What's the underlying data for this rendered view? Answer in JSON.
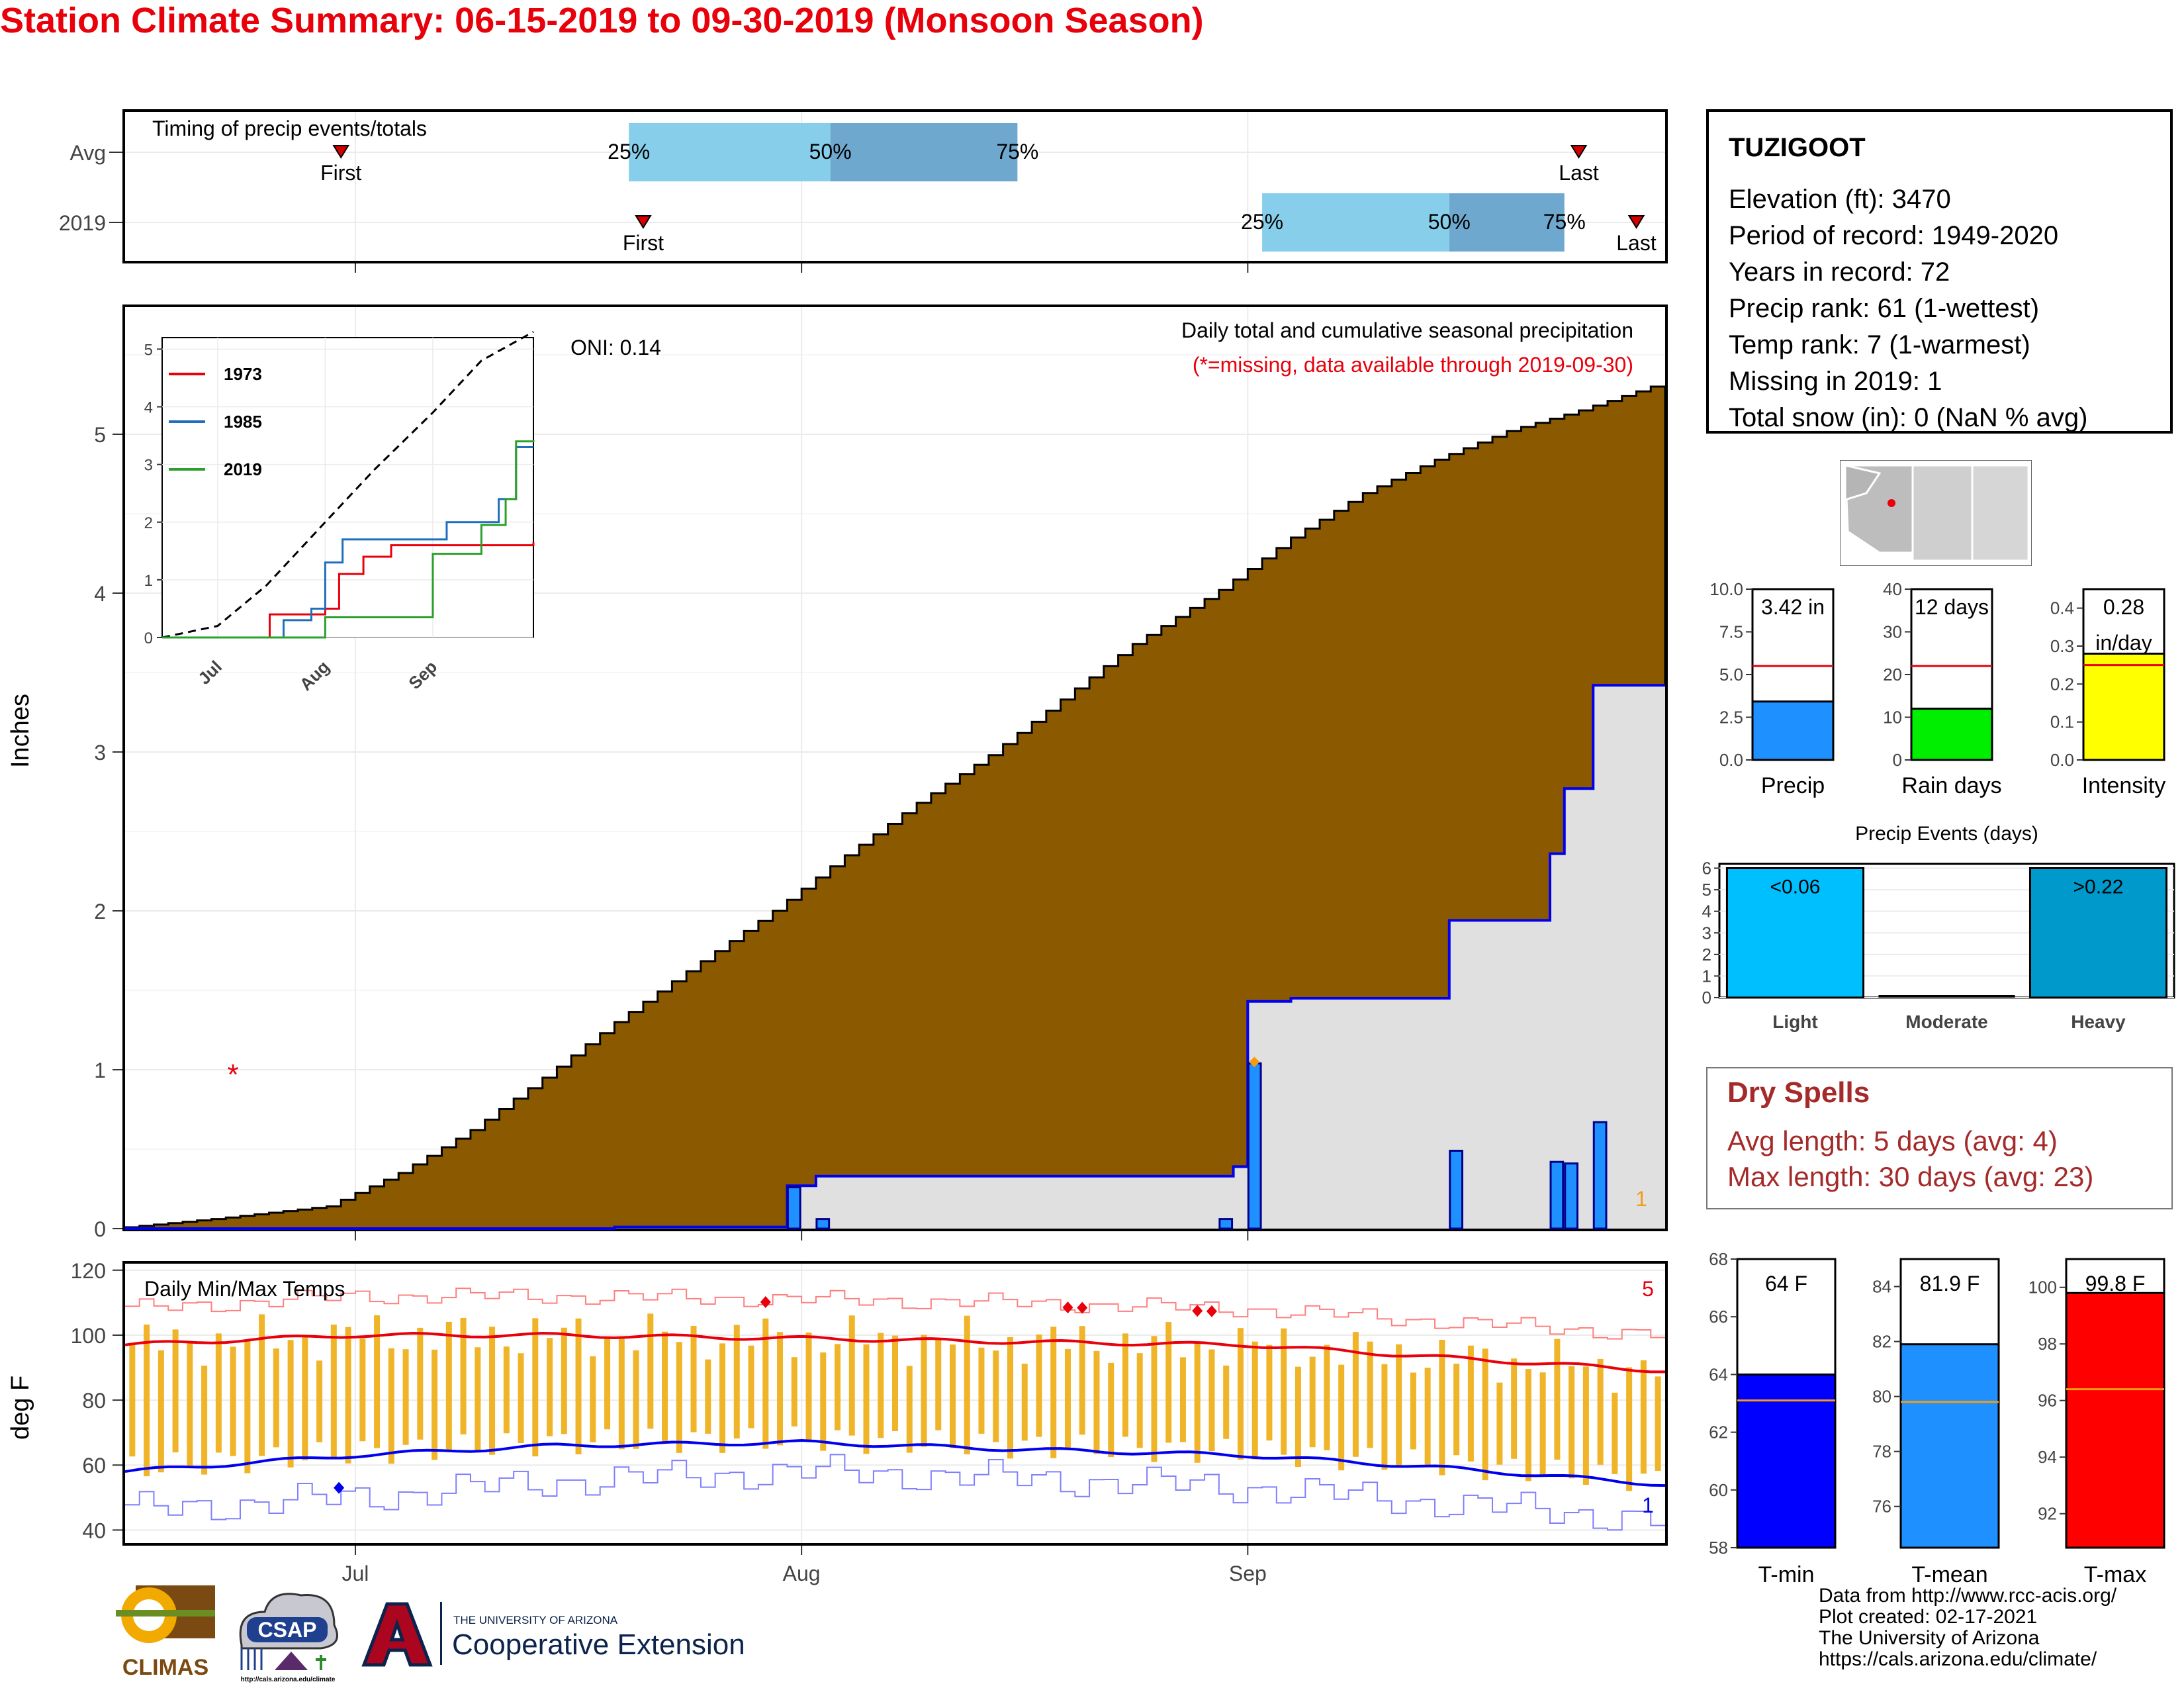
{
  "title": "Station Climate Summary: 06-15-2019 to 09-30-2019 (Monsoon Season)",
  "timing": {
    "label": "Timing of precip events/totals",
    "rows": [
      {
        "label": "Avg",
        "first_marker": "First",
        "last_marker": "Last",
        "first_date": "2019-06-30",
        "last_date": "2019-09-24",
        "q25_date": "2019-07-20",
        "q50_date": "2019-08-03",
        "q75_date": "2019-08-16",
        "q25": "25%",
        "q50": "50%",
        "q75": "75%"
      },
      {
        "label": "2019",
        "first_marker": "First",
        "last_marker": "Last",
        "first_date": "2019-07-21",
        "last_date": "2019-09-28",
        "q25_date": "2019-09-02",
        "q50_date": "2019-09-15",
        "q75_date": "2019-09-23",
        "q25": "25%",
        "q50": "50%",
        "q75": "75%"
      }
    ],
    "colors": {
      "light": "#87ceeb",
      "dark": "#6fa8cf",
      "marker": "#d40000"
    }
  },
  "precip_panel": {
    "ylabel": "Inches",
    "subtitle": "Daily total and cumulative seasonal precipitation",
    "missing_note": "(*=missing, data available through 2019-09-30)",
    "oni": "ONI: 0.14",
    "missing_count": "1",
    "yticks": [
      "0",
      "1",
      "2",
      "3",
      "4",
      "5"
    ],
    "xticks": [
      "Jul",
      "Aug",
      "Sep"
    ]
  },
  "inset": {
    "legend": [
      "1973",
      "1985",
      "2019"
    ],
    "colors": [
      "#e8000b",
      "#1f6fbf",
      "#2ca02c"
    ],
    "yticks": [
      "0",
      "1",
      "2",
      "3",
      "4",
      "5"
    ],
    "xticks": [
      "Jul",
      "Aug",
      "Sep"
    ]
  },
  "temp_panel": {
    "ylabel": "deg F",
    "label": "Daily Min/Max Temps",
    "record_high_count": "5",
    "record_low_count": "1",
    "yticks": [
      "40",
      "60",
      "80",
      "100",
      "120"
    ],
    "xticks": [
      "Jul",
      "Aug",
      "Sep"
    ]
  },
  "station": {
    "name": "TUZIGOOT",
    "lines": [
      "Elevation (ft): 3470",
      "Period of record: 1949-2020",
      "Years in record: 72",
      "Precip rank: 61 (1-wettest)",
      "Temp rank: 7 (1-warmest)",
      "Missing in 2019: 1",
      "Total snow (in): 0 (NaN % avg)"
    ]
  },
  "mini_bars": [
    {
      "label": "Precip",
      "value_label": "3.42 in",
      "value": 3.42,
      "avg": 5.5,
      "ymax": 10,
      "yticks": [
        "0.0",
        "2.5",
        "5.0",
        "7.5",
        "10.0"
      ],
      "color": "#1e90ff"
    },
    {
      "label": "Rain days",
      "value_label": "12 days",
      "value": 12,
      "avg": 22,
      "ymax": 40,
      "yticks": [
        "0",
        "10",
        "20",
        "30",
        "40"
      ],
      "color": "#00ee00"
    },
    {
      "label": "Intensity",
      "value_label": "0.28",
      "value_label2": "in/day",
      "value": 0.28,
      "avg": 0.25,
      "ymax": 0.45,
      "yticks": [
        "0.0",
        "0.1",
        "0.2",
        "0.3",
        "0.4"
      ],
      "color": "#ffff00"
    }
  ],
  "events": {
    "title": "Precip Events (days)",
    "categories": [
      "Light",
      "Moderate",
      "Heavy"
    ],
    "values": [
      6,
      0,
      6
    ],
    "labels": [
      "<0.06",
      "",
      ">0.22"
    ],
    "yticks": [
      "0",
      "1",
      "2",
      "3",
      "4",
      "5",
      "6"
    ],
    "colors": [
      "#00bfff",
      "#000000",
      "#0099cc"
    ]
  },
  "dry_spells": {
    "title": "Dry Spells",
    "avg_line": "Avg length: 5 days (avg: 4)",
    "max_line": "Max length: 30 days (avg: 23)"
  },
  "temp_bars": [
    {
      "label": "T-min",
      "value_label": "64 F",
      "value": 64.0,
      "avg": 63.1,
      "ymin": 58,
      "ymax": 68,
      "yticks": [
        "58",
        "60",
        "62",
        "64",
        "66",
        "68"
      ],
      "color": "#0000ff"
    },
    {
      "label": "T-mean",
      "value_label": "81.9 F",
      "value": 81.9,
      "avg": 79.8,
      "ymin": 74.5,
      "ymax": 85,
      "yticks": [
        "76",
        "78",
        "80",
        "82",
        "84"
      ],
      "color": "#1e90ff"
    },
    {
      "label": "T-max",
      "value_label": "99.8 F",
      "value": 99.8,
      "avg": 96.4,
      "ymin": 90.8,
      "ymax": 101,
      "yticks": [
        "92",
        "94",
        "96",
        "98",
        "100"
      ],
      "color": "#ff0000"
    }
  ],
  "logos": {
    "climas": "CLIMAS",
    "csap": "CSAP",
    "csap_url": "http://cals.arizona.edu/climate",
    "ua_line1": "THE UNIVERSITY OF ARIZONA",
    "ua_line2": "Cooperative Extension"
  },
  "credits": [
    "Data from http://www.rcc-acis.org/",
    "Plot created: 02-17-2021",
    "The University of Arizona",
    "https://cals.arizona.edu/climate/"
  ],
  "chart_data": [
    {
      "type": "area",
      "title": "Daily total and cumulative seasonal precipitation",
      "ylabel": "Inches",
      "ylim": [
        0,
        5.8
      ],
      "x_start": "2019-06-15",
      "x_end": "2019-09-30",
      "series": [
        {
          "name": "Average cumulative",
          "x": [
            "2019-06-15",
            "2019-06-22",
            "2019-06-30",
            "2019-07-05",
            "2019-07-10",
            "2019-07-15",
            "2019-07-20",
            "2019-07-25",
            "2019-07-31",
            "2019-08-05",
            "2019-08-10",
            "2019-08-15",
            "2019-08-20",
            "2019-08-25",
            "2019-08-31",
            "2019-09-05",
            "2019-09-10",
            "2019-09-15",
            "2019-09-20",
            "2019-09-25",
            "2019-09-30"
          ],
          "values": [
            0.0,
            0.06,
            0.14,
            0.35,
            0.62,
            0.95,
            1.3,
            1.62,
            2.0,
            2.35,
            2.68,
            2.98,
            3.33,
            3.68,
            4.02,
            4.35,
            4.63,
            4.84,
            5.02,
            5.15,
            5.3
          ]
        },
        {
          "name": "2019 cumulative",
          "x": [
            "2019-06-15",
            "2019-07-19",
            "2019-07-30",
            "2019-07-31",
            "2019-08-02",
            "2019-08-29",
            "2019-08-31",
            "2019-09-01",
            "2019-09-04",
            "2019-09-15",
            "2019-09-22",
            "2019-09-23",
            "2019-09-25",
            "2019-09-30"
          ],
          "values": [
            0.0,
            0.01,
            0.01,
            0.27,
            0.33,
            0.33,
            0.39,
            1.43,
            1.45,
            1.94,
            2.36,
            2.77,
            3.42,
            3.42
          ]
        },
        {
          "name": "2019 daily",
          "x": [
            "2019-07-31",
            "2019-08-02",
            "2019-08-30",
            "2019-09-01",
            "2019-09-15",
            "2019-09-22",
            "2019-09-23",
            "2019-09-25"
          ],
          "values": [
            0.26,
            0.06,
            0.06,
            1.04,
            0.49,
            0.42,
            0.41,
            0.67
          ]
        }
      ],
      "missing_x": [
        "2019-06-22"
      ]
    },
    {
      "type": "line",
      "title": "inset",
      "ylim": [
        0,
        5.2
      ],
      "series": [
        {
          "name": "Average",
          "x": [
            "2019-06-15",
            "2019-07-01",
            "2019-07-15",
            "2019-08-01",
            "2019-08-15",
            "2019-09-01",
            "2019-09-15",
            "2019-09-30"
          ],
          "values": [
            0.0,
            0.2,
            0.9,
            2.0,
            2.9,
            3.9,
            4.8,
            5.3
          ]
        },
        {
          "name": "1973",
          "x": [
            "2019-06-15",
            "2019-07-06",
            "2019-07-16",
            "2019-08-01",
            "2019-08-05",
            "2019-08-12",
            "2019-08-20",
            "2019-09-30"
          ],
          "values": [
            0.0,
            0.0,
            0.4,
            0.5,
            1.1,
            1.4,
            1.6,
            1.65
          ]
        },
        {
          "name": "1985",
          "x": [
            "2019-06-15",
            "2019-07-10",
            "2019-07-20",
            "2019-07-28",
            "2019-08-01",
            "2019-08-06",
            "2019-08-31",
            "2019-09-05",
            "2019-09-20",
            "2019-09-25",
            "2019-09-30"
          ],
          "values": [
            0.0,
            0.0,
            0.3,
            0.5,
            1.3,
            1.7,
            1.7,
            2.0,
            2.4,
            3.3,
            3.3
          ]
        },
        {
          "name": "2019",
          "x": [
            "2019-06-15",
            "2019-07-30",
            "2019-08-01",
            "2019-09-01",
            "2019-09-15",
            "2019-09-22",
            "2019-09-25",
            "2019-09-30"
          ],
          "values": [
            0.0,
            0.0,
            0.35,
            1.45,
            1.95,
            2.4,
            3.4,
            3.42
          ]
        }
      ]
    },
    {
      "type": "line",
      "title": "Daily Min/Max Temps",
      "ylabel": "deg F",
      "ylim": [
        36,
        122
      ],
      "x_start": "2019-06-15",
      "x_end": "2019-09-30",
      "series": [
        {
          "name": "Avg max",
          "x": [
            "2019-06-15",
            "2019-07-01",
            "2019-07-15",
            "2019-08-01",
            "2019-08-15",
            "2019-09-01",
            "2019-09-15",
            "2019-09-30"
          ],
          "values": [
            97,
            100,
            100,
            99,
            98,
            97,
            93,
            89
          ]
        },
        {
          "name": "Avg min",
          "x": [
            "2019-06-15",
            "2019-07-01",
            "2019-07-15",
            "2019-08-01",
            "2019-08-15",
            "2019-09-01",
            "2019-09-15",
            "2019-09-30"
          ],
          "values": [
            58,
            63,
            66,
            67,
            65,
            63,
            59,
            54
          ]
        },
        {
          "name": "Record max",
          "x": [
            "2019-06-15",
            "2019-07-01",
            "2019-07-15",
            "2019-08-01",
            "2019-08-15",
            "2019-09-01",
            "2019-09-15",
            "2019-09-30"
          ],
          "values": [
            108,
            112,
            112,
            111,
            110,
            108,
            104,
            100
          ]
        },
        {
          "name": "Record min",
          "x": [
            "2019-06-15",
            "2019-07-01",
            "2019-07-15",
            "2019-08-01",
            "2019-08-15",
            "2019-09-01",
            "2019-09-15",
            "2019-09-30"
          ],
          "values": [
            46,
            50,
            55,
            58,
            56,
            53,
            48,
            43
          ]
        }
      ],
      "record_highs_x": [
        "2019-07-29",
        "2019-08-19",
        "2019-08-20",
        "2019-08-28",
        "2019-08-29"
      ],
      "record_lows_x": [
        "2019-06-22"
      ]
    }
  ]
}
